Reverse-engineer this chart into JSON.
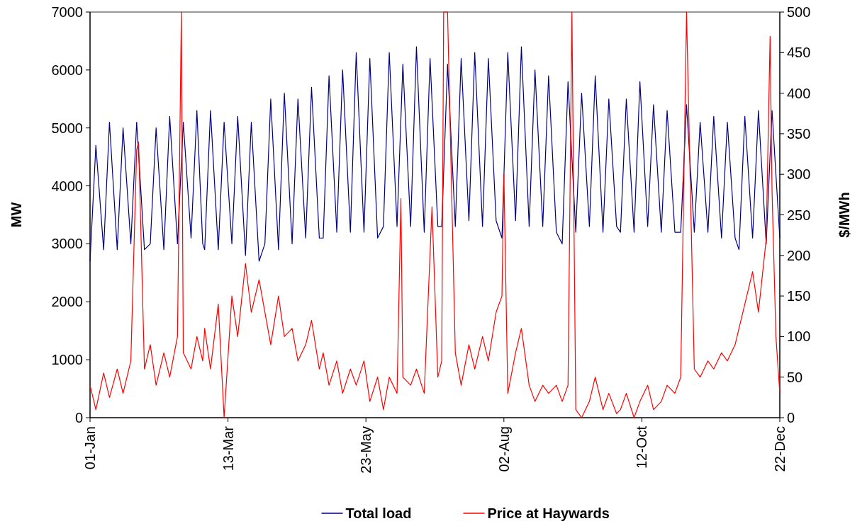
{
  "chart_data": {
    "type": "line",
    "ylabel": "MW",
    "y2label": "$/MWh",
    "legend": "bottom",
    "grid": false,
    "line_style": "solid",
    "xlim": [
      "--01-01",
      "--12-22"
    ],
    "xticks": [
      {
        "value": "--01-01",
        "label": "01-Jan"
      },
      {
        "value": "--03-13",
        "label": "13-Mar"
      },
      {
        "value": "--05-23",
        "label": "23-May"
      },
      {
        "value": "--08-02",
        "label": "02-Aug"
      },
      {
        "value": "--10-12",
        "label": "12-Oct"
      },
      {
        "value": "--12-22",
        "label": "22-Dec"
      }
    ],
    "ylim": [
      0,
      7000
    ],
    "yticks": [
      0,
      1000,
      2000,
      3000,
      4000,
      5000,
      6000,
      7000
    ],
    "y2lim": [
      0,
      500
    ],
    "y2ticks": [
      0,
      50,
      100,
      150,
      200,
      250,
      300,
      350,
      400,
      450,
      500
    ],
    "series": [
      {
        "name": "Total load",
        "color": "#000080",
        "x": [
          "--01-01",
          "--01-04",
          "--01-08",
          "--01-11",
          "--01-15",
          "--01-18",
          "--01-22",
          "--01-25",
          "--01-29",
          "--02-01",
          "--02-04",
          "--02-08",
          "--02-11",
          "--02-15",
          "--02-18",
          "--02-22",
          "--02-25",
          "--02-28",
          "--03-01",
          "--03-04",
          "--03-08",
          "--03-11",
          "--03-15",
          "--03-18",
          "--03-22",
          "--03-25",
          "--03-29",
          "--04-01",
          "--04-04",
          "--04-08",
          "--04-11",
          "--04-15",
          "--04-18",
          "--04-22",
          "--04-25",
          "--04-29",
          "--05-01",
          "--05-04",
          "--05-08",
          "--05-11",
          "--05-15",
          "--05-18",
          "--05-22",
          "--05-25",
          "--05-29",
          "--06-01",
          "--06-04",
          "--06-08",
          "--06-11",
          "--06-15",
          "--06-18",
          "--06-22",
          "--06-25",
          "--06-29",
          "--07-01",
          "--07-04",
          "--07-08",
          "--07-11",
          "--07-15",
          "--07-18",
          "--07-22",
          "--07-25",
          "--07-29",
          "--08-01",
          "--08-04",
          "--08-08",
          "--08-11",
          "--08-15",
          "--08-18",
          "--08-22",
          "--08-25",
          "--08-29",
          "--09-01",
          "--09-04",
          "--09-08",
          "--09-11",
          "--09-15",
          "--09-18",
          "--09-22",
          "--09-25",
          "--09-29",
          "--10-01",
          "--10-04",
          "--10-08",
          "--10-11",
          "--10-15",
          "--10-18",
          "--10-22",
          "--10-25",
          "--10-29",
          "--11-01",
          "--11-04",
          "--11-08",
          "--11-11",
          "--11-15",
          "--11-18",
          "--11-22",
          "--11-25",
          "--11-29",
          "--12-01",
          "--12-04",
          "--12-08",
          "--12-11",
          "--12-15",
          "--12-18",
          "--12-22"
        ],
        "values": [
          2700,
          4700,
          2900,
          5100,
          2900,
          5000,
          3000,
          5100,
          2900,
          3000,
          5000,
          2900,
          5200,
          3000,
          5100,
          3100,
          5300,
          3000,
          2900,
          5300,
          2900,
          5100,
          3000,
          5200,
          2800,
          5100,
          2700,
          3000,
          5500,
          2900,
          5600,
          3000,
          5500,
          3100,
          5700,
          3100,
          3100,
          5900,
          3200,
          6000,
          3200,
          6300,
          3200,
          6200,
          3100,
          3300,
          6300,
          3300,
          6100,
          3300,
          6400,
          3200,
          6200,
          3300,
          3300,
          6100,
          3300,
          6200,
          3400,
          6300,
          3300,
          6200,
          3400,
          3100,
          6300,
          3400,
          6400,
          3300,
          6000,
          3300,
          5900,
          3200,
          3000,
          5800,
          3200,
          5600,
          3300,
          5900,
          3200,
          5500,
          3300,
          3200,
          5500,
          3200,
          5800,
          3300,
          5400,
          3200,
          5300,
          3200,
          3200,
          5400,
          3200,
          5100,
          3200,
          5200,
          3100,
          5100,
          3100,
          2900,
          5200,
          3100,
          5300,
          3000,
          5300,
          3100
        ]
      },
      {
        "name": "Price at Haywards",
        "color": "#ff0000",
        "axis": "y2",
        "x": [
          "--01-01",
          "--01-04",
          "--01-08",
          "--01-11",
          "--01-15",
          "--01-18",
          "--01-22",
          "--01-25",
          "--01-26",
          "--01-29",
          "--02-01",
          "--02-04",
          "--02-08",
          "--02-11",
          "--02-15",
          "--02-17",
          "--02-18",
          "--02-22",
          "--02-25",
          "--02-28",
          "--03-01",
          "--03-04",
          "--03-08",
          "--03-11",
          "--03-15",
          "--03-18",
          "--03-22",
          "--03-25",
          "--03-29",
          "--04-01",
          "--04-04",
          "--04-08",
          "--04-11",
          "--04-15",
          "--04-18",
          "--04-22",
          "--04-25",
          "--04-29",
          "--05-01",
          "--05-04",
          "--05-08",
          "--05-11",
          "--05-15",
          "--05-18",
          "--05-22",
          "--05-25",
          "--05-29",
          "--06-01",
          "--06-04",
          "--06-08",
          "--06-10",
          "--06-11",
          "--06-15",
          "--06-18",
          "--06-22",
          "--06-26",
          "--06-29",
          "--07-01",
          "--07-02",
          "--07-04",
          "--07-08",
          "--07-11",
          "--07-15",
          "--07-18",
          "--07-22",
          "--07-25",
          "--07-29",
          "--08-01",
          "--08-02",
          "--08-04",
          "--08-08",
          "--08-11",
          "--08-15",
          "--08-18",
          "--08-22",
          "--08-25",
          "--08-29",
          "--09-01",
          "--09-04",
          "--09-06",
          "--09-08",
          "--09-11",
          "--09-15",
          "--09-18",
          "--09-22",
          "--09-25",
          "--09-29",
          "--10-01",
          "--10-04",
          "--10-08",
          "--10-11",
          "--10-15",
          "--10-18",
          "--10-22",
          "--10-25",
          "--10-29",
          "--11-01",
          "--11-04",
          "--11-08",
          "--11-11",
          "--11-15",
          "--11-18",
          "--11-22",
          "--11-25",
          "--11-29",
          "--12-01",
          "--12-04",
          "--12-08",
          "--12-11",
          "--12-15",
          "--12-17",
          "--12-18",
          "--12-20",
          "--12-22"
        ],
        "values": [
          40,
          10,
          55,
          25,
          60,
          30,
          70,
          330,
          340,
          60,
          90,
          40,
          80,
          50,
          100,
          500,
          80,
          60,
          100,
          70,
          110,
          60,
          140,
          0,
          150,
          100,
          190,
          130,
          170,
          130,
          90,
          150,
          100,
          110,
          70,
          90,
          120,
          60,
          80,
          40,
          70,
          30,
          60,
          40,
          70,
          20,
          50,
          10,
          50,
          30,
          270,
          50,
          40,
          60,
          30,
          260,
          50,
          70,
          500,
          500,
          80,
          40,
          90,
          60,
          100,
          70,
          130,
          150,
          300,
          30,
          80,
          110,
          40,
          20,
          40,
          30,
          40,
          20,
          40,
          500,
          10,
          0,
          20,
          50,
          10,
          30,
          5,
          10,
          30,
          0,
          20,
          40,
          10,
          20,
          40,
          30,
          50,
          500,
          60,
          50,
          70,
          60,
          80,
          70,
          90,
          110,
          140,
          180,
          130,
          220,
          470,
          280,
          100,
          30
        ]
      }
    ]
  }
}
